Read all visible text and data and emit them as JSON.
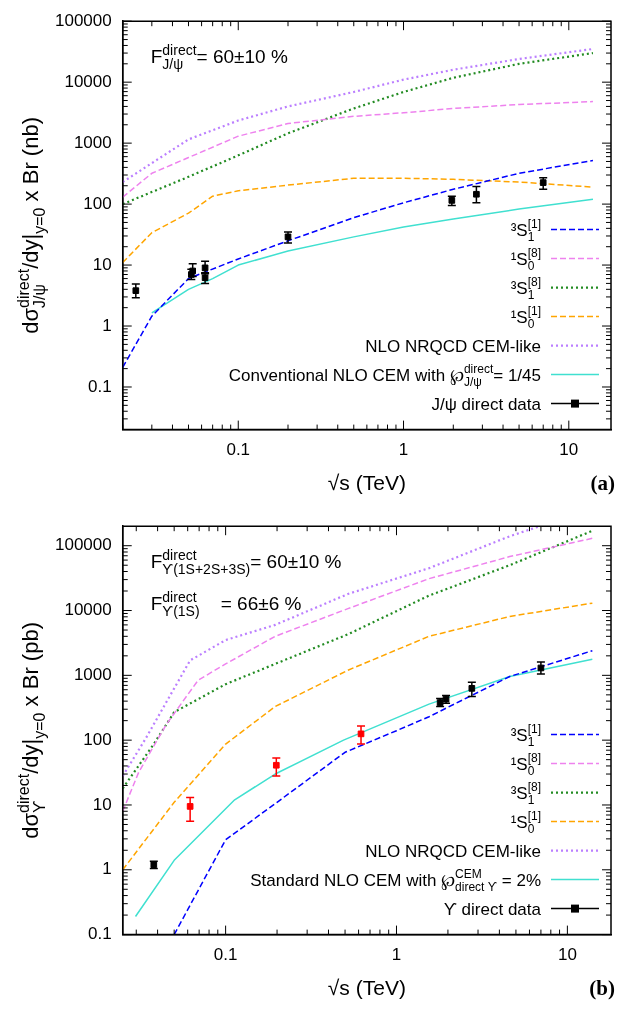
{
  "chart_data": [
    {
      "type": "line",
      "title": "(a)",
      "xlabel": "√s (TeV)",
      "ylabel": "dσ$^{direct}$$_{J/ψ}$/dy|$_{y=0}$ x Br (nb)",
      "annotations": [
        "F$^{direct}$$_{J/ψ}$= 60±10 %"
      ],
      "log": "xy",
      "legend": "bottom right",
      "xlim": [
        0.02,
        18
      ],
      "ylim": [
        0.02,
        100000
      ],
      "xticks": [
        {
          "value": 0.02,
          "label": null
        },
        {
          "value": 0.03,
          "label": null
        },
        {
          "value": 0.04,
          "label": null
        },
        {
          "value": 0.05,
          "label": null
        },
        {
          "value": 0.06,
          "label": null
        },
        {
          "value": 0.07,
          "label": null
        },
        {
          "value": 0.08,
          "label": null
        },
        {
          "value": 0.09,
          "label": null
        },
        0.1,
        {
          "value": 0.2,
          "label": null
        },
        {
          "value": 0.3,
          "label": null
        },
        {
          "value": 0.4,
          "label": null
        },
        {
          "value": 0.5,
          "label": null
        },
        {
          "value": 0.6,
          "label": null
        },
        {
          "value": 0.7,
          "label": null
        },
        {
          "value": 0.8,
          "label": null
        },
        {
          "value": 0.9,
          "label": null
        },
        1,
        {
          "value": 2,
          "label": null
        },
        {
          "value": 3,
          "label": null
        },
        {
          "value": 4,
          "label": null
        },
        {
          "value": 5,
          "label": null
        },
        {
          "value": 6,
          "label": null
        },
        {
          "value": 7,
          "label": null
        },
        {
          "value": 8,
          "label": null
        },
        {
          "value": 9,
          "label": null
        },
        10
      ],
      "yticks": [
        {
          "value": 0.03,
          "label": null
        },
        {
          "value": 0.04,
          "label": null
        },
        {
          "value": 0.05,
          "label": null
        },
        {
          "value": 0.06,
          "label": null
        },
        {
          "value": 0.07,
          "label": null
        },
        {
          "value": 0.08,
          "label": null
        },
        {
          "value": 0.09,
          "label": null
        },
        0.1,
        {
          "value": 0.2,
          "label": null
        },
        {
          "value": 0.3,
          "label": null
        },
        {
          "value": 0.4,
          "label": null
        },
        {
          "value": 0.5,
          "label": null
        },
        {
          "value": 0.6,
          "label": null
        },
        {
          "value": 0.7,
          "label": null
        },
        {
          "value": 0.8,
          "label": null
        },
        {
          "value": 0.9,
          "label": null
        },
        1,
        {
          "value": 2,
          "label": null
        },
        {
          "value": 3,
          "label": null
        },
        {
          "value": 4,
          "label": null
        },
        {
          "value": 5,
          "label": null
        },
        {
          "value": 6,
          "label": null
        },
        {
          "value": 7,
          "label": null
        },
        {
          "value": 8,
          "label": null
        },
        {
          "value": 9,
          "label": null
        },
        10,
        {
          "value": 20,
          "label": null
        },
        {
          "value": 30,
          "label": null
        },
        {
          "value": 40,
          "label": null
        },
        {
          "value": 50,
          "label": null
        },
        {
          "value": 60,
          "label": null
        },
        {
          "value": 70,
          "label": null
        },
        {
          "value": 80,
          "label": null
        },
        {
          "value": 90,
          "label": null
        },
        100,
        {
          "value": 200,
          "label": null
        },
        {
          "value": 300,
          "label": null
        },
        {
          "value": 400,
          "label": null
        },
        {
          "value": 500,
          "label": null
        },
        {
          "value": 600,
          "label": null
        },
        {
          "value": 700,
          "label": null
        },
        {
          "value": 800,
          "label": null
        },
        {
          "value": 900,
          "label": null
        },
        1000,
        {
          "value": 2000,
          "label": null
        },
        {
          "value": 3000,
          "label": null
        },
        {
          "value": 4000,
          "label": null
        },
        {
          "value": 5000,
          "label": null
        },
        {
          "value": 6000,
          "label": null
        },
        {
          "value": 7000,
          "label": null
        },
        {
          "value": 8000,
          "label": null
        },
        {
          "value": 9000,
          "label": null
        },
        10000,
        {
          "value": 20000,
          "label": null
        },
        {
          "value": 30000,
          "label": null
        },
        {
          "value": 40000,
          "label": null
        },
        {
          "value": 50000,
          "label": null
        },
        {
          "value": 60000,
          "label": null
        },
        {
          "value": 70000,
          "label": null
        },
        {
          "value": 80000,
          "label": null
        },
        {
          "value": 90000,
          "label": null
        },
        100000
      ],
      "series": [
        {
          "name": "³S$_{1}$$^{[1]}$",
          "type": "line",
          "line_style": "dashed",
          "color": "#0000ff",
          "x": [
            0.02,
            0.03,
            0.05,
            0.1,
            0.2,
            0.5,
            1,
            2,
            5,
            14
          ],
          "values": [
            0.21,
            1.45,
            6,
            12.6,
            25,
            60,
            105,
            175,
            320,
            520
          ]
        },
        {
          "name": "¹S$_{0}$$^{[8]}$",
          "type": "line",
          "line_style": "dashed",
          "color": "#ee82ee",
          "x": [
            0.02,
            0.03,
            0.05,
            0.1,
            0.2,
            0.5,
            1,
            2,
            5,
            14
          ],
          "values": [
            130,
            320,
            580,
            1300,
            2100,
            2750,
            3150,
            3700,
            4300,
            4800
          ]
        },
        {
          "name": "³S$_{1}$$^{[8]}$",
          "type": "line",
          "line_style": "dotted",
          "color": "#228b22",
          "x": [
            0.02,
            0.05,
            0.1,
            0.2,
            0.5,
            1,
            2,
            5,
            14
          ],
          "values": [
            100,
            280,
            630,
            1450,
            3700,
            6900,
            11800,
            20000,
            30000
          ]
        },
        {
          "name": "¹S$_{0}$$^{[1]}$",
          "type": "line",
          "line_style": "dashed",
          "color": "#ffa500",
          "x": [
            0.02,
            0.03,
            0.05,
            0.07,
            0.1,
            0.2,
            0.5,
            1,
            2,
            5,
            14
          ],
          "values": [
            11,
            34,
            71,
            135,
            165,
            205,
            265,
            265,
            255,
            230,
            190
          ]
        },
        {
          "name": "NLO NRQCD CEM-like",
          "type": "line",
          "line_style": "dotted",
          "color": "#bb7fff",
          "x": [
            0.02,
            0.03,
            0.05,
            0.1,
            0.2,
            0.5,
            1,
            2,
            5,
            14
          ],
          "values": [
            230,
            470,
            1150,
            2350,
            4000,
            6900,
            11000,
            16000,
            24000,
            35000
          ]
        },
        {
          "name": "Conventional NLO CEM with ℘$^{direct}$$_{J/ψ}$= 1/45",
          "type": "line",
          "line_style": "solid",
          "color": "#40e0d0",
          "x": [
            0.03,
            0.05,
            0.07,
            0.1,
            0.2,
            0.5,
            1,
            2,
            5,
            14
          ],
          "values": [
            1.65,
            4,
            6,
            10,
            17,
            29,
            42,
            57,
            83,
            120
          ]
        },
        {
          "name": "J/ψ direct data",
          "type": "scatter",
          "marker": "square",
          "color": "#000000",
          "x": [
            0.024,
            0.052,
            0.053,
            0.063,
            0.063,
            0.2,
            1.96,
            2.76,
            7
          ],
          "values": [
            3.8,
            7,
            8,
            9,
            6.2,
            29,
            115,
            145,
            225
          ],
          "errors": [
            [
              2.9,
              4.9
            ],
            [
              5.8,
              8.5
            ],
            [
              6.5,
              10.5
            ],
            [
              7.2,
              11.5
            ],
            [
              5,
              7.5
            ],
            [
              23,
              35
            ],
            [
              95,
              135
            ],
            [
              105,
              195
            ],
            [
              175,
              270
            ]
          ]
        }
      ]
    },
    {
      "type": "line",
      "title": "(b)",
      "xlabel": "√s (TeV)",
      "ylabel": "dσ$^{direct}$$_{ϒ}$/dy|$_{y=0}$ x Br (pb)",
      "annotations": [
        "F$^{direct}$$_{ϒ(1S+2S+3S)}$= 60±10 %",
        "F$^{direct}$$_{ϒ(1S)}$    = 66±6 %"
      ],
      "log": "xy",
      "legend": "bottom right",
      "xlim": [
        0.025,
        18
      ],
      "ylim": [
        0.1,
        200000
      ],
      "xticks": [
        {
          "value": 0.03,
          "label": null
        },
        {
          "value": 0.04,
          "label": null
        },
        {
          "value": 0.05,
          "label": null
        },
        {
          "value": 0.06,
          "label": null
        },
        {
          "value": 0.07,
          "label": null
        },
        {
          "value": 0.08,
          "label": null
        },
        {
          "value": 0.09,
          "label": null
        },
        0.1,
        {
          "value": 0.2,
          "label": null
        },
        {
          "value": 0.3,
          "label": null
        },
        {
          "value": 0.4,
          "label": null
        },
        {
          "value": 0.5,
          "label": null
        },
        {
          "value": 0.6,
          "label": null
        },
        {
          "value": 0.7,
          "label": null
        },
        {
          "value": 0.8,
          "label": null
        },
        {
          "value": 0.9,
          "label": null
        },
        1,
        {
          "value": 2,
          "label": null
        },
        {
          "value": 3,
          "label": null
        },
        {
          "value": 4,
          "label": null
        },
        {
          "value": 5,
          "label": null
        },
        {
          "value": 6,
          "label": null
        },
        {
          "value": 7,
          "label": null
        },
        {
          "value": 8,
          "label": null
        },
        {
          "value": 9,
          "label": null
        },
        10
      ],
      "yticks": [
        0.1,
        {
          "value": 0.2,
          "label": null
        },
        {
          "value": 0.3,
          "label": null
        },
        {
          "value": 0.4,
          "label": null
        },
        {
          "value": 0.5,
          "label": null
        },
        {
          "value": 0.6,
          "label": null
        },
        {
          "value": 0.7,
          "label": null
        },
        {
          "value": 0.8,
          "label": null
        },
        {
          "value": 0.9,
          "label": null
        },
        1,
        {
          "value": 2,
          "label": null
        },
        {
          "value": 3,
          "label": null
        },
        {
          "value": 4,
          "label": null
        },
        {
          "value": 5,
          "label": null
        },
        {
          "value": 6,
          "label": null
        },
        {
          "value": 7,
          "label": null
        },
        {
          "value": 8,
          "label": null
        },
        {
          "value": 9,
          "label": null
        },
        10,
        {
          "value": 20,
          "label": null
        },
        {
          "value": 30,
          "label": null
        },
        {
          "value": 40,
          "label": null
        },
        {
          "value": 50,
          "label": null
        },
        {
          "value": 60,
          "label": null
        },
        {
          "value": 70,
          "label": null
        },
        {
          "value": 80,
          "label": null
        },
        {
          "value": 90,
          "label": null
        },
        100,
        {
          "value": 200,
          "label": null
        },
        {
          "value": 300,
          "label": null
        },
        {
          "value": 400,
          "label": null
        },
        {
          "value": 500,
          "label": null
        },
        {
          "value": 600,
          "label": null
        },
        {
          "value": 700,
          "label": null
        },
        {
          "value": 800,
          "label": null
        },
        {
          "value": 900,
          "label": null
        },
        1000,
        {
          "value": 2000,
          "label": null
        },
        {
          "value": 3000,
          "label": null
        },
        {
          "value": 4000,
          "label": null
        },
        {
          "value": 5000,
          "label": null
        },
        {
          "value": 6000,
          "label": null
        },
        {
          "value": 7000,
          "label": null
        },
        {
          "value": 8000,
          "label": null
        },
        {
          "value": 9000,
          "label": null
        },
        10000,
        {
          "value": 20000,
          "label": null
        },
        {
          "value": 30000,
          "label": null
        },
        {
          "value": 40000,
          "label": null
        },
        {
          "value": 50000,
          "label": null
        },
        {
          "value": 60000,
          "label": null
        },
        {
          "value": 70000,
          "label": null
        },
        {
          "value": 80000,
          "label": null
        },
        {
          "value": 90000,
          "label": null
        },
        100000
      ],
      "series": [
        {
          "name": "³S$_{1}$$^{[1]}$",
          "type": "line",
          "line_style": "dashed",
          "color": "#0000ff",
          "x": [
            0.05,
            0.1,
            0.2,
            0.5,
            1,
            1.55,
            4.6,
            14
          ],
          "values": [
            0.1,
            2.9,
            11,
            65,
            140,
            230,
            960,
            2400
          ]
        },
        {
          "name": "¹S$_{0}$$^{[8]}$",
          "type": "line",
          "line_style": "dashed",
          "color": "#ee82ee",
          "x": [
            0.025,
            0.031,
            0.045,
            0.069,
            0.1,
            0.195,
            0.52,
            1.55,
            4.6,
            14
          ],
          "values": [
            8,
            32,
            175,
            840,
            1500,
            4000,
            10700,
            31000,
            68000,
            130000
          ]
        },
        {
          "name": "³S$_{1}$$^{[8]}$",
          "type": "line",
          "line_style": "dotted",
          "color": "#228b22",
          "x": [
            0.025,
            0.038,
            0.05,
            0.1,
            0.195,
            0.52,
            1.55,
            4.6,
            14
          ],
          "values": [
            18,
            87,
            270,
            730,
            1500,
            4300,
            17000,
            50000,
            170000
          ]
        },
        {
          "name": "¹S$_{0}$$^{[1]}$",
          "type": "line",
          "line_style": "dashed",
          "color": "#ffa500",
          "x": [
            0.025,
            0.05,
            0.1,
            0.195,
            0.52,
            1.55,
            4.6,
            14
          ],
          "values": [
            1,
            11,
            87,
            330,
            1200,
            4000,
            8100,
            13000
          ]
        },
        {
          "name": "NLO NRQCD CEM-like",
          "type": "line",
          "line_style": "dotted",
          "color": "#bb7fff",
          "x": [
            0.025,
            0.034,
            0.05,
            0.062,
            0.1,
            0.195,
            0.52,
            1.55,
            4.6,
            6.9
          ],
          "values": [
            28,
            105,
            630,
            1700,
            3500,
            6000,
            18000,
            45000,
            140000,
            200000
          ]
        },
        {
          "name": "Standard NLO CEM with ℘$^{CEM}$$_{direct ϒ}$ = 2%",
          "type": "line",
          "line_style": "solid",
          "color": "#40e0d0",
          "x": [
            0.0297,
            0.05,
            0.113,
            0.195,
            0.49,
            1.55,
            4.6,
            14
          ],
          "values": [
            0.19,
            1.4,
            12,
            30,
            100,
            360,
            960,
            1770
          ]
        },
        {
          "name": "ϒ direct data",
          "type": "scatter",
          "marker": "square",
          "color": "#000000",
          "x": [
            0.038,
            1.8,
            1.95,
            2.76,
            7
          ],
          "values": [
            1.2,
            380,
            430,
            630,
            1300
          ],
          "errors": [
            [
              1.05,
              1.35
            ],
            [
              330,
              440
            ],
            [
              370,
              490
            ],
            [
              470,
              780
            ],
            [
              1050,
              1600
            ]
          ]
        },
        {
          "type": "scatter",
          "marker": "square",
          "color": "#ff0000",
          "x": [
            0.062,
            0.198,
            0.62
          ],
          "values": [
            9.5,
            41,
            125
          ],
          "errors": [
            [
              5.6,
              13
            ],
            [
              28,
              53
            ],
            [
              87,
              165
            ]
          ]
        }
      ]
    }
  ]
}
